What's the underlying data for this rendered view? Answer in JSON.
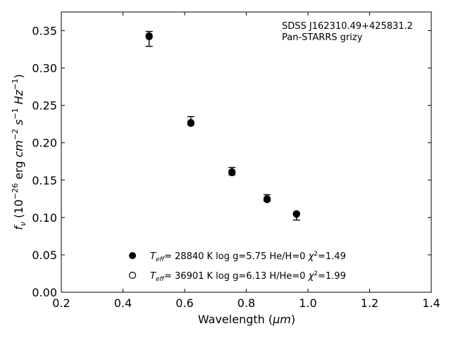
{
  "chart_data": {
    "type": "scatter",
    "title": "",
    "annotation": {
      "line1": "SDSS J162310.49+425831.2",
      "line2": "Pan-STARRS grizy"
    },
    "xlabel": {
      "main": "Wavelength (",
      "unit": "μm",
      "close": ")"
    },
    "ylabel": {
      "f": "f",
      "sub": "ν",
      "open": " (10",
      "exp": "−26",
      "mid": " erg ",
      "cm": "cm",
      "cm_exp": "−2",
      "s": " s",
      "s_exp": "−1",
      "hz": " Hz",
      "hz_exp": "−1",
      "close": ")"
    },
    "xlim": [
      0.2,
      1.4
    ],
    "ylim": [
      0.0,
      0.38
    ],
    "xticks": [
      "0.2",
      "0.4",
      "0.6",
      "0.8",
      "1.0",
      "1.2",
      "1.4"
    ],
    "yticks": [
      "0.00",
      "0.05",
      "0.10",
      "0.15",
      "0.20",
      "0.25",
      "0.30",
      "0.35"
    ],
    "grid": false,
    "observed": {
      "x": [
        0.4849,
        0.6201,
        0.7535,
        0.8674,
        0.9628
      ],
      "y": [
        0.343,
        0.228,
        0.161,
        0.1255,
        0.1035
      ],
      "err_lo": [
        0.329,
        0.224,
        0.157,
        0.122,
        0.0965
      ],
      "err_hi": [
        0.349,
        0.235,
        0.167,
        0.1305,
        0.1065
      ]
    },
    "series": [
      {
        "name": "Teff= 28840 K log g=5.75 He/H=0 χ2=1.49",
        "marker": "filled-circle",
        "x": [
          0.4849,
          0.6201,
          0.7535,
          0.8674,
          0.9628
        ],
        "y": [
          0.343,
          0.227,
          0.161,
          0.124,
          0.105
        ]
      },
      {
        "name": "Teff= 36901 K log g=6.13 H/He=0 χ2=1.99",
        "marker": "open-circle",
        "x": [
          0.4849,
          0.6201,
          0.7535,
          0.8674,
          0.9628
        ],
        "y": [
          0.342,
          0.226,
          0.16,
          0.125,
          0.1045
        ]
      }
    ],
    "legend": {
      "placement": "lower-center",
      "entries": [
        {
          "T": "T",
          "eff": "eff",
          "rest": "= 28840 K  log g=5.75  He/H=0  ",
          "chi": "χ",
          "chi_exp": "2",
          "chi_val": "=1.49"
        },
        {
          "T": "T",
          "eff": "eff",
          "rest": "= 36901 K  log g=6.13  H/He=0  ",
          "chi": "χ",
          "chi_exp": "2",
          "chi_val": "=1.99"
        }
      ]
    },
    "colors": {
      "marker": "#000000",
      "axis": "#000000"
    }
  }
}
